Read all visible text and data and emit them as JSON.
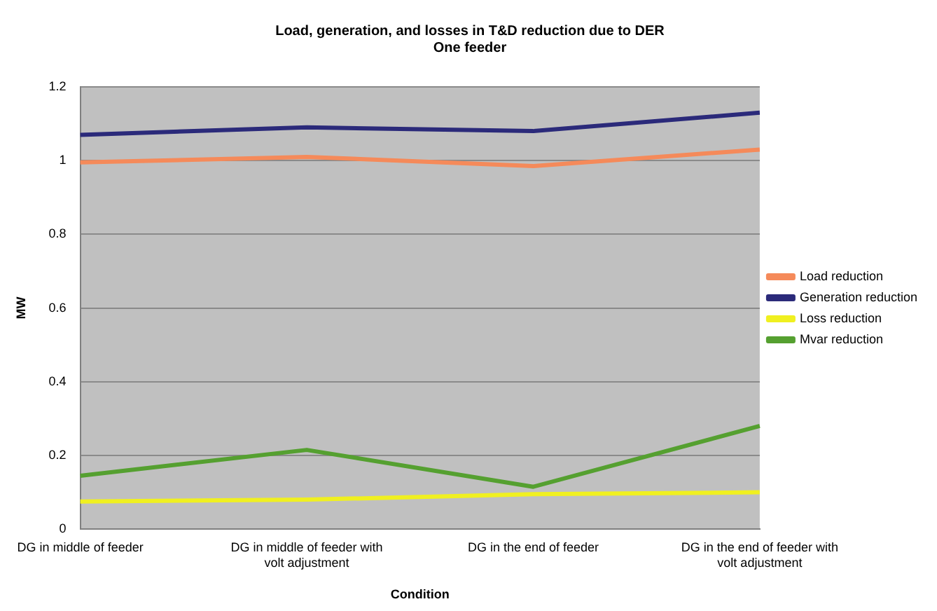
{
  "chart_data": {
    "type": "line",
    "title": "Load, generation, and losses in T&D reduction due to DER",
    "subtitle": "One feeder",
    "xlabel": "Condition",
    "ylabel": "MW",
    "categories": [
      "DG in middle of feeder",
      "DG in middle of feeder with volt adjustment",
      "DG in the end of feeder",
      "DG in the end of feeder with volt adjustment"
    ],
    "series": [
      {
        "name": "Load reduction",
        "color": "#f58a5a",
        "values": [
          0.995,
          1.01,
          0.985,
          1.03
        ]
      },
      {
        "name": "Generation reduction",
        "color": "#2b2a7a",
        "values": [
          1.07,
          1.09,
          1.08,
          1.13
        ]
      },
      {
        "name": "Loss reduction",
        "color": "#f0f020",
        "values": [
          0.075,
          0.08,
          0.095,
          0.1
        ]
      },
      {
        "name": "Mvar reduction",
        "color": "#55a030",
        "values": [
          0.145,
          0.215,
          0.115,
          0.28
        ]
      }
    ],
    "ylim": [
      0,
      1.2
    ],
    "yticks": [
      0,
      0.2,
      0.4,
      0.6,
      0.8,
      1,
      1.2
    ],
    "grid": "y",
    "legend": "right",
    "marker": "none"
  }
}
